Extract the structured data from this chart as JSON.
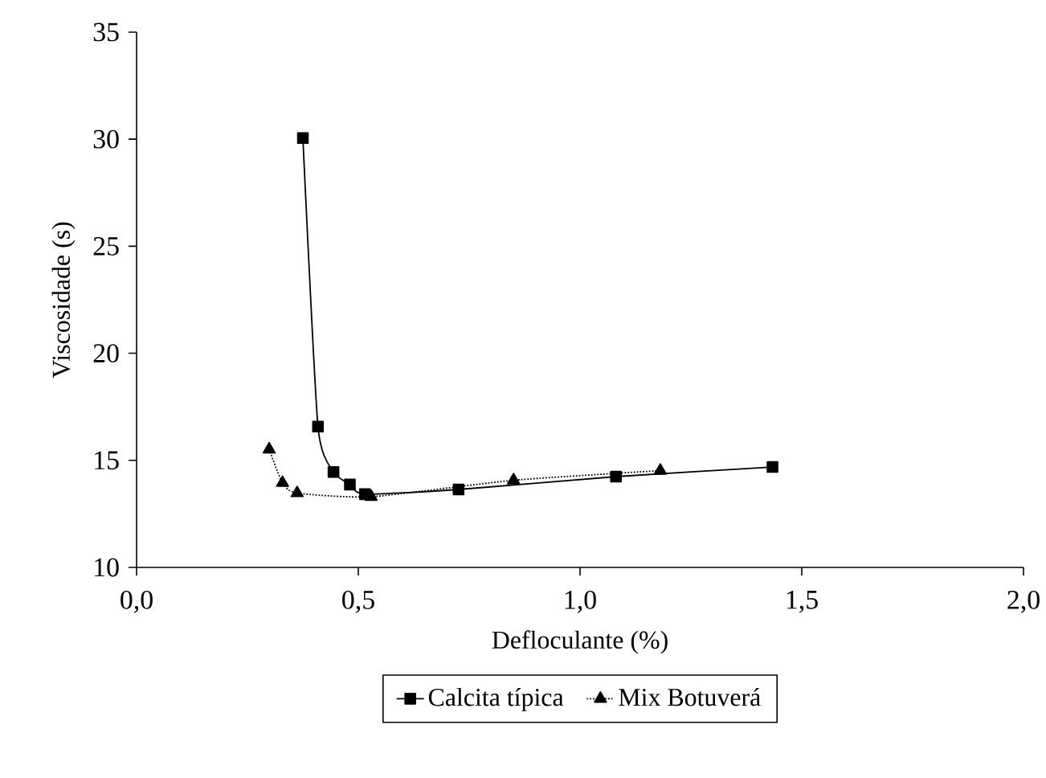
{
  "chart_data": {
    "type": "line",
    "xlabel": "Defloculante (%)",
    "ylabel": "Viscosidade (s)",
    "xlim": [
      0,
      2
    ],
    "ylim": [
      10,
      35
    ],
    "xticks": [
      {
        "value": 0,
        "label": "0,0"
      },
      {
        "value": 0.5,
        "label": "0,5"
      },
      {
        "value": 1,
        "label": "1,0"
      },
      {
        "value": 1.5,
        "label": "1,5"
      },
      {
        "value": 2,
        "label": "2,0"
      }
    ],
    "yticks": [
      10,
      15,
      20,
      25,
      30,
      35
    ],
    "legend": "bottom",
    "grid": false,
    "series": [
      {
        "name": "Calcita típica",
        "color": "#000000",
        "marker": "square",
        "line_style": "solid",
        "x": [
          0.375,
          0.409,
          0.444,
          0.481,
          0.515,
          0.726,
          1.081,
          1.434
        ],
        "values": [
          30.05,
          16.58,
          14.46,
          13.87,
          13.42,
          13.64,
          14.24,
          14.69
        ]
      },
      {
        "name": "Mix Botuverá",
        "color": "#000000",
        "marker": "triangle",
        "line_style": "dotted",
        "x": [
          0.299,
          0.329,
          0.362,
          0.529,
          0.85,
          1.181
        ],
        "values": [
          15.51,
          13.95,
          13.47,
          13.3,
          14.07,
          14.52
        ]
      }
    ]
  }
}
